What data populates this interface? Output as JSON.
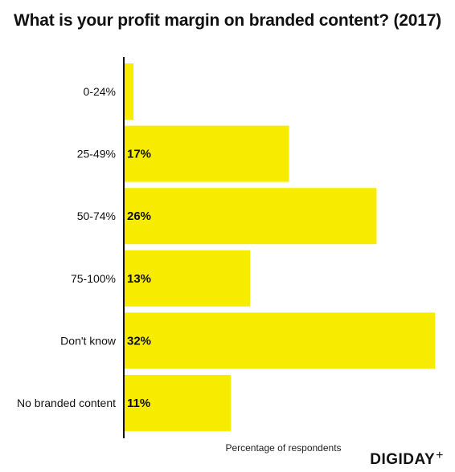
{
  "title": "What is your profit margin on branded content? (2017)",
  "brand": {
    "name": "DIGIDAY",
    "mark": "+"
  },
  "colors": {
    "bar": "#f7eb00",
    "axis": "#111111",
    "text": "#111111"
  },
  "chart_data": {
    "type": "bar",
    "orientation": "horizontal",
    "title": "What is your profit margin on branded content? (2017)",
    "xlabel": "Percentage of respondents",
    "ylabel": "",
    "categories": [
      "0-24%",
      "25-49%",
      "50-74%",
      "75-100%",
      "Don't know",
      "No branded content"
    ],
    "values": [
      1,
      17,
      26,
      13,
      32,
      11
    ],
    "value_labels": [
      "",
      "17%",
      "26%",
      "13%",
      "32%",
      "11%"
    ],
    "xlim": [
      0,
      32
    ],
    "grid": false,
    "legend": "none"
  }
}
